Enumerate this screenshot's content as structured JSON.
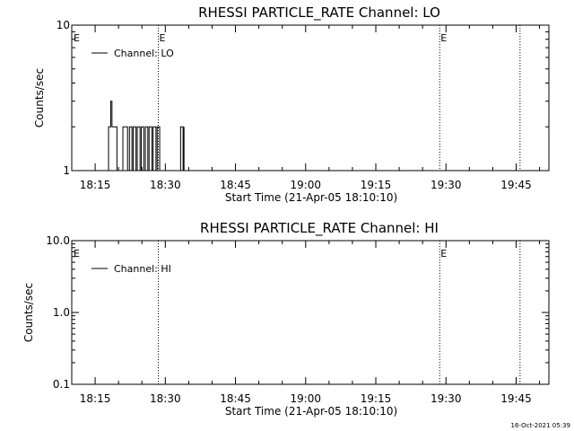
{
  "stamp": "16-Oct-2021 05:39",
  "chart_data": [
    {
      "type": "line",
      "title": "RHESSI PARTICLE_RATE Channel: LO",
      "xlabel": "Start Time (21-Apr-05 18:10:10)",
      "ylabel": "Counts/sec",
      "yscale": "log",
      "xlim": [
        "18:10",
        "19:52"
      ],
      "ylim": [
        1,
        10
      ],
      "xticks": [
        "18:15",
        "18:30",
        "18:45",
        "19:00",
        "19:15",
        "19:30",
        "19:45"
      ],
      "yticks": [
        "1",
        "10"
      ],
      "grid": false,
      "legend": "top-left",
      "series": [
        {
          "name": "Channel: LO",
          "x": [
            "18:17:40",
            "18:17:52",
            "18:18:20",
            "18:18:36",
            "18:19:20",
            "18:19:40",
            "18:20:40",
            "18:20:56",
            "18:21:40",
            "18:21:56",
            "18:22:20",
            "18:22:36",
            "18:22:52",
            "18:23:08",
            "18:23:28",
            "18:23:44",
            "18:24:00",
            "18:24:16",
            "18:24:36",
            "18:24:52",
            "18:25:08",
            "18:25:24",
            "18:25:44",
            "18:26:00",
            "18:26:16",
            "18:26:32",
            "18:26:52",
            "18:27:08",
            "18:27:24",
            "18:27:40",
            "18:28:00",
            "18:28:16",
            "18:28:32",
            "18:28:48",
            "18:29:00",
            "18:33:00",
            "18:33:16",
            "18:33:32",
            "18:33:48",
            "18:34:00"
          ],
          "y": [
            1,
            2,
            3,
            2,
            2,
            1,
            1,
            2,
            2,
            1,
            2,
            2,
            1,
            2,
            2,
            1,
            2,
            2,
            1,
            2,
            2,
            1,
            2,
            2,
            1,
            2,
            2,
            1,
            2,
            2,
            1,
            2,
            2,
            1,
            1,
            1,
            2,
            2,
            1,
            2
          ]
        }
      ],
      "markers": [
        {
          "time": "18:28:30",
          "label": "E"
        },
        {
          "time": "19:28:40",
          "label": "E"
        },
        {
          "time": "19:45:50",
          "label": ""
        }
      ],
      "left_flag": "E"
    },
    {
      "type": "line",
      "title": "RHESSI PARTICLE_RATE Channel: HI",
      "xlabel": "Start Time (21-Apr-05 18:10:10)",
      "ylabel": "Counts/sec",
      "yscale": "log",
      "xlim": [
        "18:10",
        "19:52"
      ],
      "ylim": [
        0.1,
        10
      ],
      "xticks": [
        "18:15",
        "18:30",
        "18:45",
        "19:00",
        "19:15",
        "19:30",
        "19:45"
      ],
      "yticks": [
        "0.1",
        "1.0",
        "10.0"
      ],
      "grid": false,
      "legend": "top-left",
      "series": [
        {
          "name": "Channel: HI",
          "x": [],
          "y": []
        }
      ],
      "markers": [
        {
          "time": "18:28:30",
          "label": ""
        },
        {
          "time": "19:28:40",
          "label": "E"
        },
        {
          "time": "19:45:50",
          "label": ""
        }
      ],
      "left_flag": "E"
    }
  ]
}
